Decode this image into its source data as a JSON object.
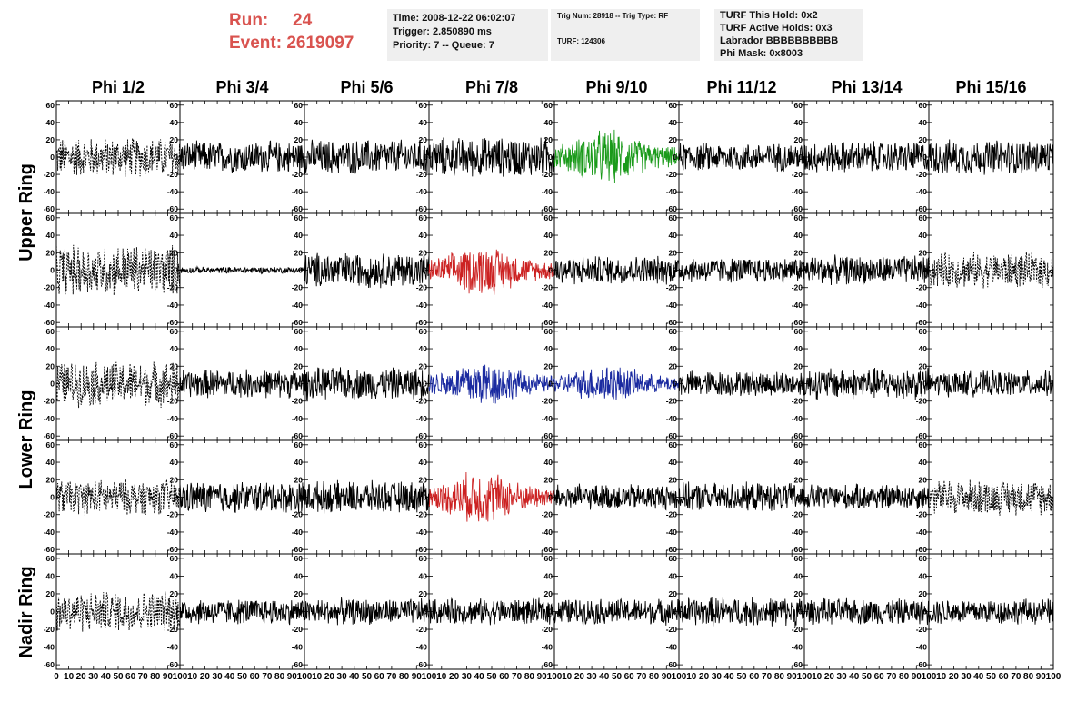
{
  "run": {
    "run_label": "Run:",
    "run_value": "24",
    "event_label": "Event:",
    "event_value": "2619097"
  },
  "info1": {
    "time": "Time: 2008-12-22 06:02:07",
    "trigger": "Trigger: 2.850890 ms",
    "priority": "Priority: 7 -- Queue: 7"
  },
  "info2": {
    "trig": "Trig Num: 28918 -- Trig Type: RF",
    "turf": "TURF: 124306"
  },
  "info3": {
    "hold": "TURF This Hold: 0x2",
    "active": "TURF Active Holds: 0x3",
    "labrador": "Labrador BBBBBBBBBB",
    "mask": "Phi Mask: 0x8003"
  },
  "phi_headers": [
    "Phi 1/2",
    "Phi 3/4",
    "Phi 5/6",
    "Phi 7/8",
    "Phi 9/10",
    "Phi 11/12",
    "Phi 13/14",
    "Phi 15/16"
  ],
  "ring_labels": {
    "upper": "Upper Ring",
    "lower": "Lower Ring",
    "nadir": "Nadir Ring"
  },
  "colors": {
    "run_text": "#d9534f",
    "info_bg": "#efefef",
    "trace_default": "#000000",
    "trace_green": "#1a9a1a",
    "trace_red": "#cc2222",
    "trace_blue": "#1a2aa0"
  },
  "chart_data": {
    "type": "line",
    "xlim": [
      0,
      100
    ],
    "ylim": [
      -65,
      65
    ],
    "y_ticks": [
      -60,
      -40,
      -20,
      0,
      20,
      40,
      60
    ],
    "y_tick_labels": [
      "-60",
      "-40",
      "-20",
      "0",
      "20",
      "40",
      "60"
    ],
    "x_tick_labels": [
      "0",
      "10",
      "20",
      "30",
      "40",
      "50",
      "60",
      "70",
      "80",
      "90",
      "100"
    ],
    "rows": 5,
    "cols": 8,
    "panels": [
      [
        {
          "style": "dashed",
          "color": "black",
          "amp": 25
        },
        {
          "style": "solid",
          "color": "black",
          "amp": 20
        },
        {
          "style": "solid",
          "color": "black",
          "amp": 22
        },
        {
          "style": "solid",
          "color": "black",
          "amp": 25
        },
        {
          "style": "solid",
          "color": "green",
          "amp": 35
        },
        {
          "style": "solid",
          "color": "black",
          "amp": 18
        },
        {
          "style": "solid",
          "color": "black",
          "amp": 20
        },
        {
          "style": "solid",
          "color": "black",
          "amp": 22
        }
      ],
      [
        {
          "style": "dashed",
          "color": "black",
          "amp": 32
        },
        {
          "style": "solid",
          "color": "black",
          "amp": 4
        },
        {
          "style": "solid",
          "color": "black",
          "amp": 22
        },
        {
          "style": "solid",
          "color": "red",
          "amp": 32
        },
        {
          "style": "solid",
          "color": "black",
          "amp": 18
        },
        {
          "style": "solid",
          "color": "black",
          "amp": 16
        },
        {
          "style": "solid",
          "color": "black",
          "amp": 18
        },
        {
          "style": "dashed",
          "color": "black",
          "amp": 22
        }
      ],
      [
        {
          "style": "dashed",
          "color": "black",
          "amp": 28
        },
        {
          "style": "solid",
          "color": "black",
          "amp": 18
        },
        {
          "style": "solid",
          "color": "black",
          "amp": 20
        },
        {
          "style": "solid",
          "color": "blue",
          "amp": 30
        },
        {
          "style": "solid",
          "color": "blue",
          "amp": 25
        },
        {
          "style": "solid",
          "color": "black",
          "amp": 16
        },
        {
          "style": "solid",
          "color": "black",
          "amp": 20
        },
        {
          "style": "solid",
          "color": "black",
          "amp": 16
        }
      ],
      [
        {
          "style": "dashed",
          "color": "black",
          "amp": 22
        },
        {
          "style": "solid",
          "color": "black",
          "amp": 20
        },
        {
          "style": "solid",
          "color": "black",
          "amp": 20
        },
        {
          "style": "solid",
          "color": "red",
          "amp": 34
        },
        {
          "style": "solid",
          "color": "black",
          "amp": 16
        },
        {
          "style": "solid",
          "color": "black",
          "amp": 18
        },
        {
          "style": "solid",
          "color": "black",
          "amp": 16
        },
        {
          "style": "dashed",
          "color": "black",
          "amp": 22
        }
      ],
      [
        {
          "style": "dashed",
          "color": "black",
          "amp": 25
        },
        {
          "style": "solid",
          "color": "black",
          "amp": 16
        },
        {
          "style": "solid",
          "color": "black",
          "amp": 16
        },
        {
          "style": "solid",
          "color": "black",
          "amp": 16
        },
        {
          "style": "solid",
          "color": "black",
          "amp": 16
        },
        {
          "style": "solid",
          "color": "black",
          "amp": 18
        },
        {
          "style": "solid",
          "color": "black",
          "amp": 16
        },
        {
          "style": "solid",
          "color": "black",
          "amp": 16
        }
      ]
    ]
  }
}
